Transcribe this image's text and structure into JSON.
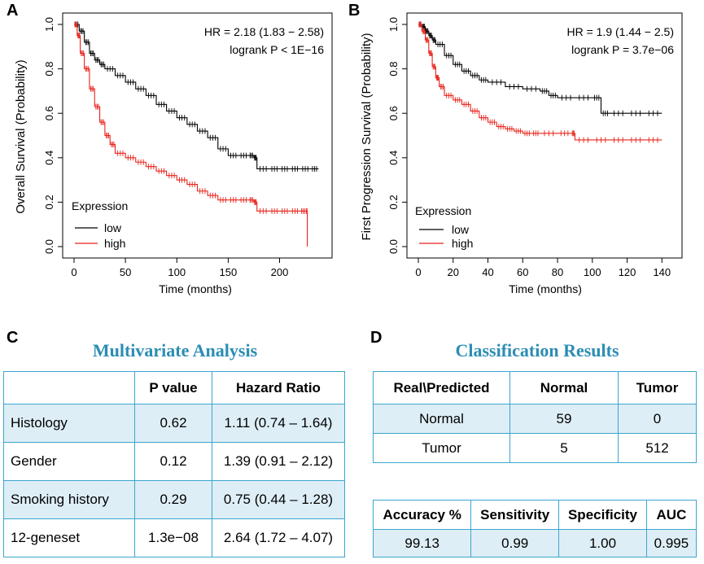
{
  "panels": {
    "a": "A",
    "b": "B",
    "c": "C",
    "d": "D"
  },
  "chart_data": [
    {
      "type": "line",
      "panel": "A",
      "xlabel": "Time (months)",
      "ylabel": "Overall Survival (Probability)",
      "xlim": [
        0,
        240
      ],
      "ylim": [
        0,
        1
      ],
      "xticks": [
        0,
        50,
        100,
        150,
        200
      ],
      "yticks": [
        0.0,
        0.2,
        0.4,
        0.6,
        0.8,
        1.0
      ],
      "ytick_labels": [
        "0.0",
        "0.2",
        "0.4",
        "0.6",
        "0.8",
        "1.0"
      ],
      "annotations": [
        "HR = 2.18 (1.83 − 2.58)",
        "logrank P < 1E−16"
      ],
      "legend_title": "Expression",
      "legend_position": "bottom-left",
      "series": [
        {
          "name": "low",
          "color": "#000000",
          "x": [
            0,
            5,
            10,
            15,
            20,
            25,
            30,
            40,
            50,
            60,
            70,
            80,
            90,
            100,
            110,
            120,
            130,
            140,
            150,
            160,
            170,
            175,
            178,
            190,
            200,
            210,
            220,
            230,
            238
          ],
          "y": [
            1.0,
            0.97,
            0.92,
            0.87,
            0.84,
            0.82,
            0.8,
            0.77,
            0.74,
            0.71,
            0.68,
            0.64,
            0.61,
            0.58,
            0.55,
            0.52,
            0.49,
            0.44,
            0.41,
            0.41,
            0.41,
            0.4,
            0.35,
            0.35,
            0.35,
            0.35,
            0.35,
            0.35,
            0.35
          ]
        },
        {
          "name": "high",
          "color": "#e8231b",
          "x": [
            0,
            3,
            6,
            10,
            15,
            20,
            25,
            30,
            35,
            40,
            50,
            60,
            70,
            80,
            90,
            100,
            110,
            120,
            130,
            140,
            150,
            160,
            170,
            175,
            178,
            190,
            200,
            210,
            220,
            226,
            227
          ],
          "y": [
            1.0,
            0.95,
            0.87,
            0.8,
            0.71,
            0.63,
            0.56,
            0.5,
            0.46,
            0.42,
            0.4,
            0.38,
            0.36,
            0.34,
            0.32,
            0.3,
            0.28,
            0.25,
            0.23,
            0.21,
            0.21,
            0.21,
            0.21,
            0.2,
            0.16,
            0.16,
            0.16,
            0.16,
            0.16,
            0.16,
            0.0
          ]
        }
      ]
    },
    {
      "type": "line",
      "panel": "B",
      "xlabel": "Time (months)",
      "ylabel": "First Progression Survival (Probability)",
      "xlim": [
        0,
        145
      ],
      "ylim": [
        0,
        1
      ],
      "xticks": [
        0,
        20,
        40,
        60,
        80,
        100,
        120,
        140
      ],
      "yticks": [
        0.0,
        0.2,
        0.4,
        0.6,
        0.8,
        1.0
      ],
      "ytick_labels": [
        "0.0",
        "0.2",
        "0.4",
        "0.6",
        "0.8",
        "1.0"
      ],
      "annotations": [
        "HR = 1.9 (1.44 − 2.5)",
        "logrank P = 3.7e−06"
      ],
      "legend_title": "Expression",
      "legend_position": "bottom-left",
      "series": [
        {
          "name": "low",
          "color": "#000000",
          "x": [
            0,
            2,
            4,
            6,
            8,
            10,
            15,
            20,
            25,
            30,
            35,
            40,
            50,
            60,
            70,
            75,
            80,
            90,
            100,
            105,
            110,
            120,
            130,
            140
          ],
          "y": [
            1.0,
            0.99,
            0.97,
            0.95,
            0.93,
            0.91,
            0.86,
            0.82,
            0.79,
            0.77,
            0.75,
            0.74,
            0.72,
            0.71,
            0.7,
            0.68,
            0.67,
            0.67,
            0.67,
            0.6,
            0.6,
            0.6,
            0.6,
            0.6
          ]
        },
        {
          "name": "high",
          "color": "#e8231b",
          "x": [
            0,
            2,
            4,
            6,
            8,
            10,
            12,
            15,
            20,
            25,
            30,
            35,
            40,
            45,
            50,
            55,
            60,
            65,
            70,
            80,
            88,
            90,
            100,
            110,
            120,
            130,
            140
          ],
          "y": [
            1.0,
            0.97,
            0.93,
            0.87,
            0.81,
            0.76,
            0.72,
            0.68,
            0.66,
            0.64,
            0.61,
            0.58,
            0.56,
            0.54,
            0.53,
            0.52,
            0.51,
            0.51,
            0.51,
            0.51,
            0.51,
            0.48,
            0.48,
            0.48,
            0.48,
            0.48,
            0.48
          ]
        }
      ]
    }
  ],
  "tableC": {
    "title": "Multivariate Analysis",
    "headers": [
      "",
      "P value",
      "Hazard Ratio"
    ],
    "rows": [
      [
        "Histology",
        "0.62",
        "1.11 (0.74 – 1.64)"
      ],
      [
        "Gender",
        "0.12",
        "1.39 (0.91 – 2.12)"
      ],
      [
        "Smoking history",
        "0.29",
        "0.75 (0.44 – 1.28)"
      ],
      [
        "12-geneset",
        "1.3e−08",
        "2.64 (1.72 – 4.07)"
      ]
    ]
  },
  "tableD1": {
    "title": "Classification Results",
    "headers": [
      "Real\\Predicted",
      "Normal",
      "Tumor"
    ],
    "rows": [
      [
        "Normal",
        "59",
        "0"
      ],
      [
        "Tumor",
        "5",
        "512"
      ]
    ]
  },
  "tableD2": {
    "headers": [
      "Accuracy %",
      "Sensitivity",
      "Specificity",
      "AUC"
    ],
    "rows": [
      [
        "99.13",
        "0.99",
        "1.00",
        "0.995"
      ]
    ]
  }
}
